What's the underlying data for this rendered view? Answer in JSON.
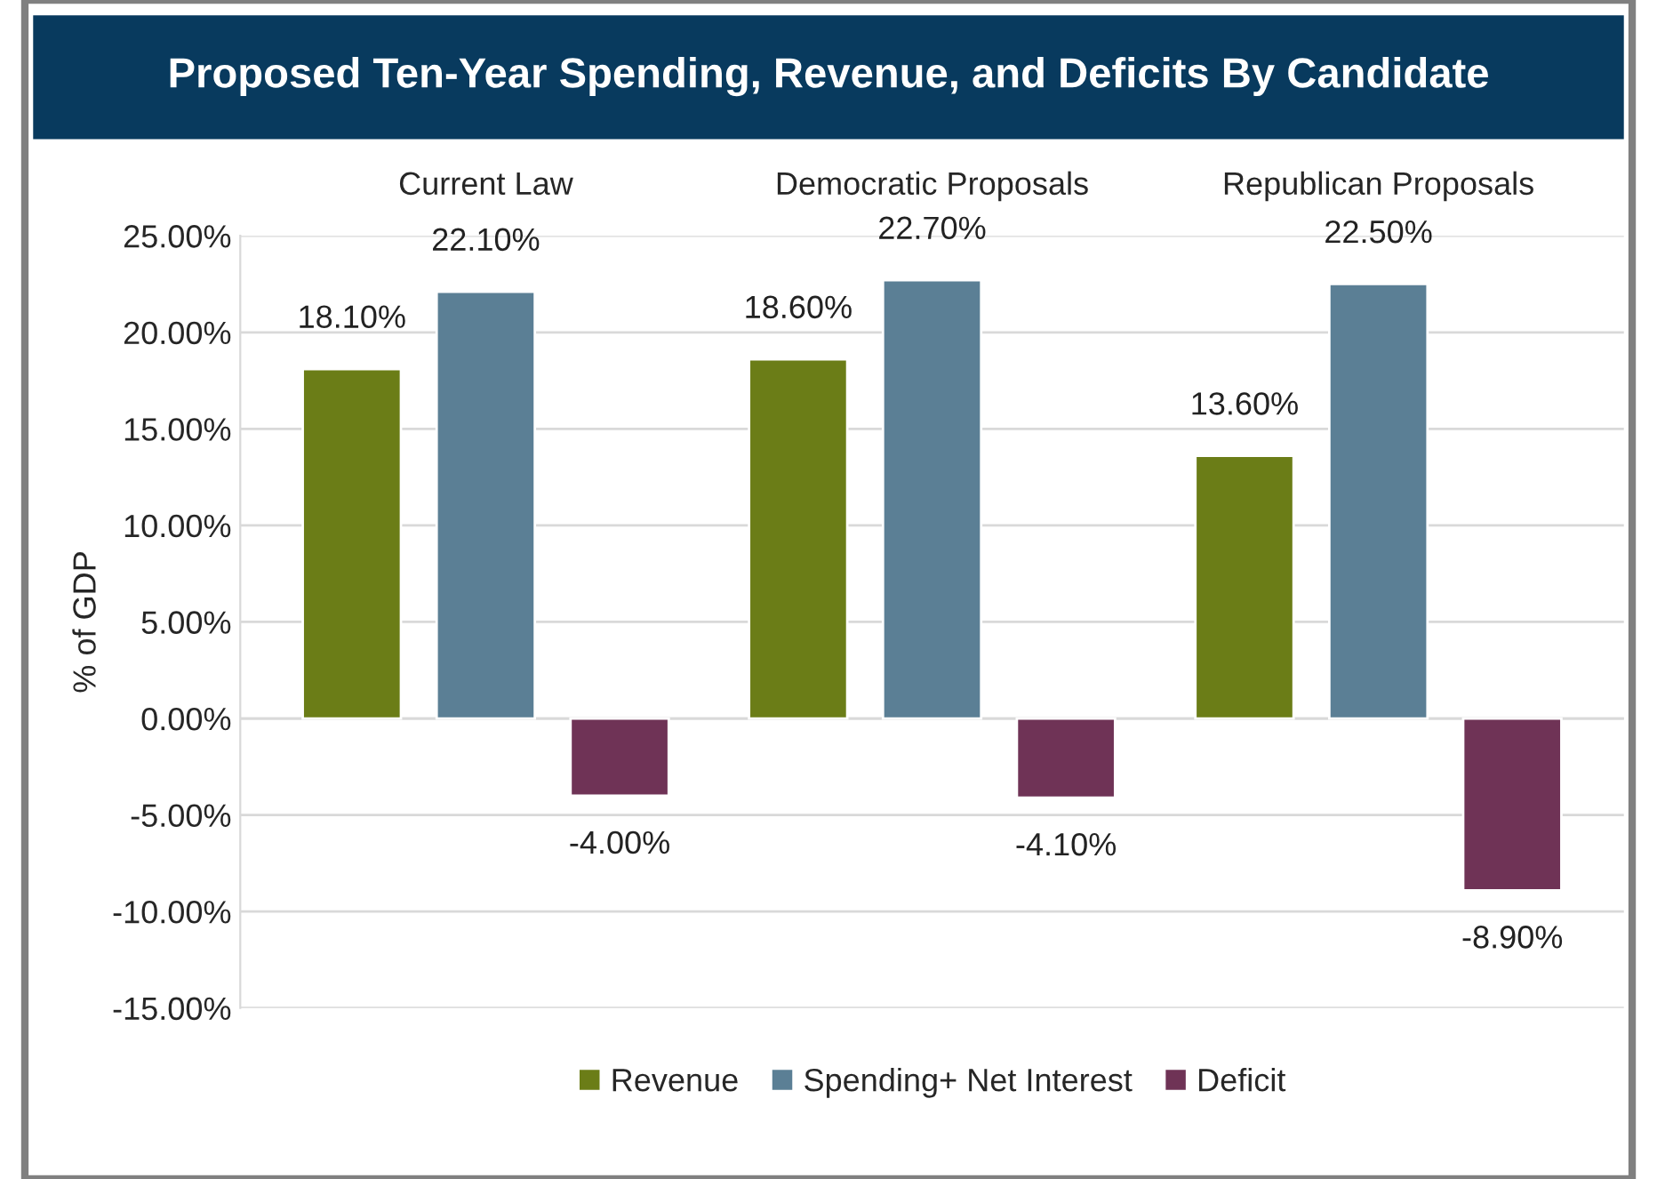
{
  "chart_data": {
    "type": "bar",
    "title": "Proposed Ten-Year Spending, Revenue, and Deficits By Candidate",
    "ylabel": "% of GDP",
    "categories": [
      "Current Law",
      "Democratic Proposals",
      "Republican Proposals"
    ],
    "series": [
      {
        "name": "Revenue",
        "color": "#6b7d17",
        "values": [
          18.1,
          18.6,
          13.6
        ],
        "value_labels": [
          "18.10%",
          "18.60%",
          "13.60%"
        ]
      },
      {
        "name": "Spending+ Net Interest",
        "color": "#5b7f95",
        "values": [
          22.1,
          22.7,
          22.5
        ],
        "value_labels": [
          "22.10%",
          "22.70%",
          "22.50%"
        ]
      },
      {
        "name": "Deficit",
        "color": "#6f3356",
        "values": [
          -4.0,
          -4.1,
          -8.9
        ],
        "value_labels": [
          "-4.00%",
          "-4.10%",
          "-8.90%"
        ]
      }
    ],
    "ylim": [
      -15,
      25
    ],
    "yticks": [
      {
        "value": -15,
        "label": "-15.00%"
      },
      {
        "value": -10,
        "label": "-10.00%"
      },
      {
        "value": -5,
        "label": "-5.00%"
      },
      {
        "value": 0,
        "label": "0.00%"
      },
      {
        "value": 5,
        "label": "5.00%"
      },
      {
        "value": 10,
        "label": "10.00%"
      },
      {
        "value": 15,
        "label": "15.00%"
      },
      {
        "value": 20,
        "label": "20.00%"
      },
      {
        "value": 25,
        "label": "25.00%"
      }
    ],
    "grid": "y",
    "legend": "bottom"
  }
}
